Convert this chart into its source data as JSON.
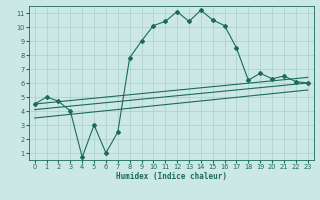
{
  "xlabel": "Humidex (Indice chaleur)",
  "xlim": [
    -0.5,
    23.5
  ],
  "ylim": [
    0.5,
    11.5
  ],
  "xticks": [
    0,
    1,
    2,
    3,
    4,
    5,
    6,
    7,
    8,
    9,
    10,
    11,
    12,
    13,
    14,
    15,
    16,
    17,
    18,
    19,
    20,
    21,
    22,
    23
  ],
  "yticks": [
    1,
    2,
    3,
    4,
    5,
    6,
    7,
    8,
    9,
    10,
    11
  ],
  "bg_color": "#cce8e6",
  "line_color": "#1a6b5a",
  "grid_color": "#aacfcc",
  "main_curve_x": [
    0,
    1,
    2,
    3,
    4,
    5,
    6,
    7,
    8,
    9,
    10,
    11,
    12,
    13,
    14,
    15,
    16,
    17,
    18,
    19,
    20,
    21,
    22,
    23
  ],
  "main_curve_y": [
    4.5,
    5.0,
    4.7,
    4.0,
    0.7,
    3.0,
    1.0,
    2.5,
    7.8,
    9.0,
    10.1,
    10.4,
    11.1,
    10.4,
    11.2,
    10.5,
    10.1,
    8.5,
    6.2,
    6.7,
    6.3,
    6.5,
    6.1,
    6.0
  ],
  "line1_x": [
    0,
    23
  ],
  "line1_y": [
    4.5,
    6.4
  ],
  "line2_x": [
    0,
    23
  ],
  "line2_y": [
    4.1,
    6.0
  ],
  "line3_x": [
    0,
    23
  ],
  "line3_y": [
    3.5,
    5.5
  ],
  "marker_indices": [
    0,
    1,
    2,
    3,
    4,
    5,
    6,
    7,
    8,
    9,
    10,
    11,
    12,
    13,
    14,
    15,
    16,
    17,
    18,
    19,
    20,
    21,
    22,
    23
  ]
}
